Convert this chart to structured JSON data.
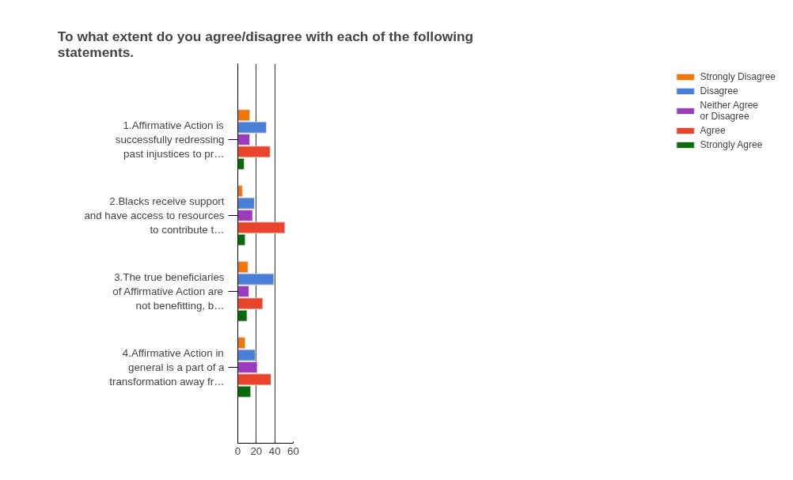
{
  "chart_data": {
    "type": "bar",
    "orientation": "horizontal",
    "title": "To what extent do you agree/disagree with each of the following\nstatements.",
    "categories": [
      "1.Affirmative Action is\nsuccessfully redressing\npast injustices to pr…",
      "2.Blacks receive support\nand have access to resources\nto contribute t…",
      "3.The true beneficiaries\nof Affirmative Action are\nnot benefitting, b…",
      "4.Affirmative Action in\ngeneral is a part of a\ntransformation away fr…"
    ],
    "series": [
      {
        "name": "Strongly Disagree",
        "color": "#f07800",
        "values": [
          13,
          5,
          11,
          8
        ]
      },
      {
        "name": "Disagree",
        "color": "#4a7fd8",
        "values": [
          31,
          18,
          39,
          19
        ]
      },
      {
        "name": "Neither Agree\nor Disagree",
        "color": "#9c3cbc",
        "values": [
          13,
          16,
          12,
          21
        ]
      },
      {
        "name": "Agree",
        "color": "#e8452c",
        "values": [
          35,
          51,
          27,
          36
        ]
      },
      {
        "name": "Strongly Agree",
        "color": "#0b6b0b",
        "values": [
          7,
          8,
          10,
          14
        ]
      }
    ],
    "xlim": [
      0,
      60
    ],
    "xticks": [
      0,
      20,
      40,
      60
    ],
    "grid": "x",
    "legend": "right"
  }
}
